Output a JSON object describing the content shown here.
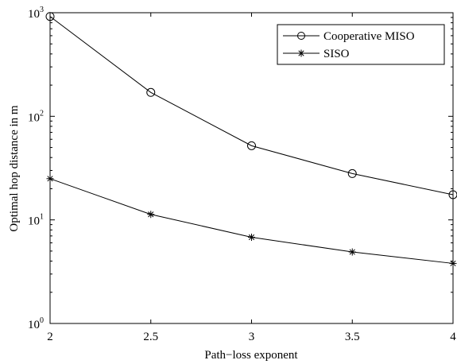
{
  "chart_data": {
    "type": "line",
    "xlabel": "Path−loss exponent",
    "ylabel": "Optimal hop distance in m",
    "yscale": "log",
    "xlim": [
      2,
      4
    ],
    "ylim": [
      1,
      1000
    ],
    "x_ticks": [
      2,
      2.5,
      3,
      3.5,
      4
    ],
    "x_tick_labels": [
      "2",
      "2.5",
      "3",
      "3.5",
      "4"
    ],
    "y_ticks": [
      {
        "value": 1,
        "base": "10",
        "exp": "0"
      },
      {
        "value": 10,
        "base": "10",
        "exp": "1"
      },
      {
        "value": 100,
        "base": "10",
        "exp": "2"
      },
      {
        "value": 1000,
        "base": "10",
        "exp": "3"
      }
    ],
    "grid": false,
    "legend_position": "top-right",
    "x": [
      2,
      2.5,
      3,
      3.5,
      4
    ],
    "series": [
      {
        "name": "Cooperative MISO",
        "marker": "circle",
        "color": "#000000",
        "values": [
          920,
          170,
          52,
          28,
          17.5
        ]
      },
      {
        "name": "SISO",
        "marker": "asterisk",
        "color": "#000000",
        "values": [
          25,
          11.3,
          6.8,
          4.9,
          3.8
        ]
      }
    ]
  }
}
